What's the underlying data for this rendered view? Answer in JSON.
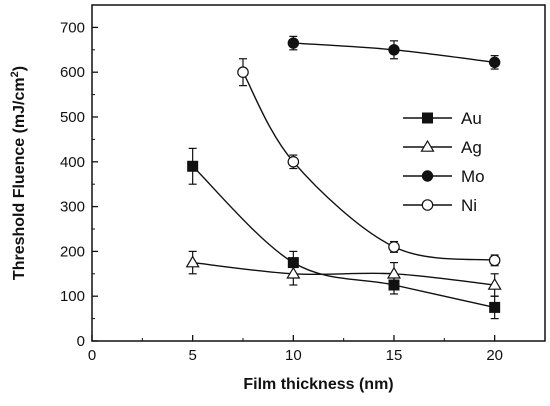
{
  "chart_data": {
    "type": "scatter",
    "xlabel": "Film thickness (nm)",
    "ylabel_prefix": "Threshold Fluence (mJ/cm",
    "ylabel_sup": "2",
    "ylabel_suffix": ")",
    "xlim": [
      0,
      22.5
    ],
    "ylim": [
      0,
      750
    ],
    "xticks": [
      0,
      5,
      10,
      15,
      20
    ],
    "yticks": [
      0,
      100,
      200,
      300,
      400,
      500,
      600,
      700
    ],
    "grid": false,
    "legend_position": "right",
    "series": [
      {
        "name": "Au",
        "marker": "filled-square",
        "line": "solid",
        "points": [
          {
            "x": 5,
            "y": 390,
            "err": 40
          },
          {
            "x": 10,
            "y": 175,
            "err": 25
          },
          {
            "x": 15,
            "y": 125,
            "err": 20
          },
          {
            "x": 20,
            "y": 75,
            "err": 25
          }
        ]
      },
      {
        "name": "Ag",
        "marker": "open-triangle",
        "line": "solid",
        "points": [
          {
            "x": 5,
            "y": 175,
            "err": 25
          },
          {
            "x": 10,
            "y": 150,
            "err": 25
          },
          {
            "x": 15,
            "y": 150,
            "err": 25
          },
          {
            "x": 20,
            "y": 125,
            "err": 25
          }
        ]
      },
      {
        "name": "Mo",
        "marker": "filled-circle",
        "line": "solid",
        "points": [
          {
            "x": 10,
            "y": 665,
            "err": 15
          },
          {
            "x": 15,
            "y": 650,
            "err": 20
          },
          {
            "x": 20,
            "y": 622,
            "err": 15
          }
        ]
      },
      {
        "name": "Ni",
        "marker": "open-circle",
        "line": "solid",
        "points": [
          {
            "x": 7.5,
            "y": 600,
            "err": 30
          },
          {
            "x": 10,
            "y": 400,
            "err": 15
          },
          {
            "x": 15,
            "y": 210,
            "err": 12
          },
          {
            "x": 20,
            "y": 180,
            "err": 12
          }
        ]
      }
    ]
  }
}
